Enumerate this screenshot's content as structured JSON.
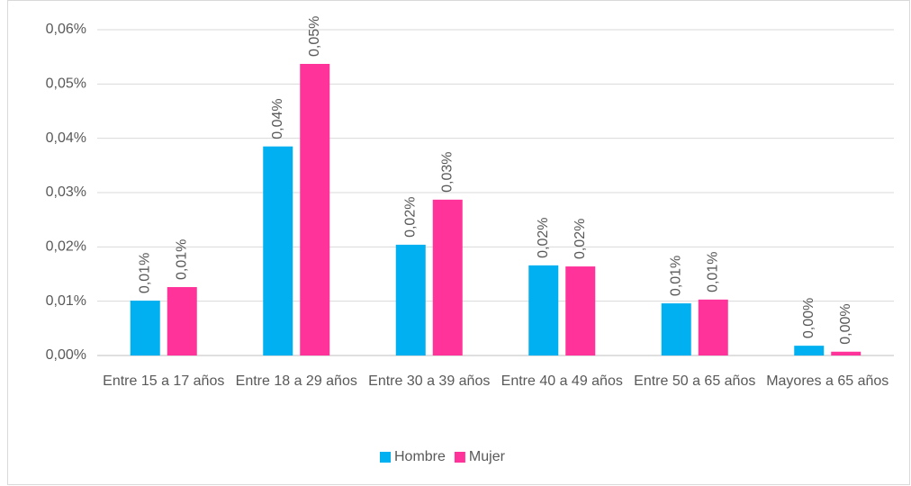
{
  "chart_data": {
    "type": "bar",
    "categories": [
      "Entre 15 a 17 años",
      "Entre 18 a 29 años",
      "Entre 30 a 39 años",
      "Entre 40 a 49 años",
      "Entre 50 a 65 años",
      "Mayores a 65 años"
    ],
    "series": [
      {
        "name": "Hombre",
        "color": "#00b0f0",
        "values": [
          0.0101,
          0.0385,
          0.0204,
          0.0166,
          0.0096,
          0.0018
        ],
        "value_labels": [
          "0,01%",
          "0,04%",
          "0,02%",
          "0,02%",
          "0,01%",
          "0,00%"
        ]
      },
      {
        "name": "Mujer",
        "color": "#ff3399",
        "values": [
          0.0126,
          0.0537,
          0.0287,
          0.0164,
          0.0103,
          0.0007
        ],
        "value_labels": [
          "0,01%",
          "0,05%",
          "0,03%",
          "0,02%",
          "0,01%",
          "0,00%"
        ]
      }
    ],
    "ylim": [
      0,
      0.06
    ],
    "yticks": [
      {
        "value": 0,
        "label": "0,00%"
      },
      {
        "value": 0.01,
        "label": "0,01%"
      },
      {
        "value": 0.02,
        "label": "0,02%"
      },
      {
        "value": 0.03,
        "label": "0,03%"
      },
      {
        "value": 0.04,
        "label": "0,04%"
      },
      {
        "value": 0.05,
        "label": "0,05%"
      },
      {
        "value": 0.06,
        "label": "0,06%"
      }
    ],
    "grid": true,
    "legend": "bottom"
  }
}
